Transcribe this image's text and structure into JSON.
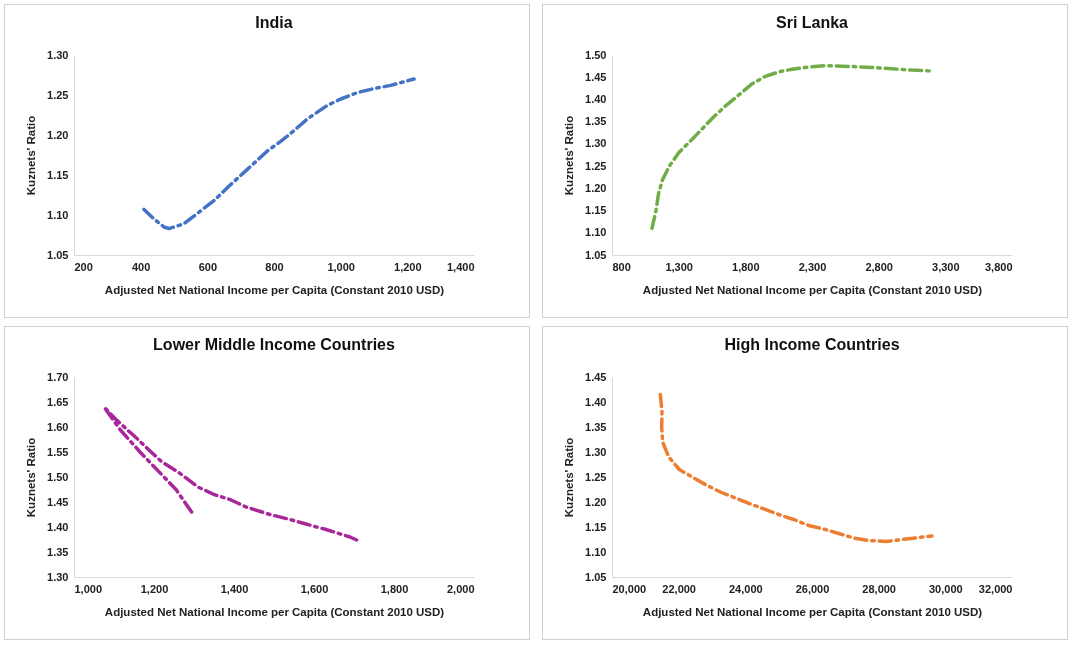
{
  "chart_data": [
    {
      "type": "line",
      "title": "India",
      "xlabel": "Adjusted Net National Income per Capita (Constant 2010 USD)",
      "ylabel": "Kuznets' Ratio",
      "line_style": "dashed",
      "grid": false,
      "xlim": [
        200,
        1400
      ],
      "xticks": [
        200,
        400,
        600,
        800,
        {
          "value": 1000,
          "label": "1,000"
        },
        {
          "value": 1200,
          "label": "1,200"
        },
        {
          "value": 1400,
          "label": "1,400"
        }
      ],
      "ylim": [
        1.05,
        1.3
      ],
      "yticks": [
        1.05,
        {
          "value": 1.1,
          "label": "1.10"
        },
        1.15,
        {
          "value": 1.2,
          "label": "1.20"
        },
        1.25,
        {
          "value": 1.3,
          "label": "1.30"
        }
      ],
      "series": [
        {
          "color": "#4472c4",
          "x": [
            410,
            440,
            470,
            485,
            530,
            570,
            620,
            670,
            720,
            780,
            820,
            850,
            900,
            960,
            1000,
            1050,
            1100,
            1150,
            1220
          ],
          "values": [
            1.107,
            1.095,
            1.085,
            1.083,
            1.089,
            1.102,
            1.118,
            1.138,
            1.157,
            1.18,
            1.192,
            1.202,
            1.22,
            1.237,
            1.245,
            1.253,
            1.258,
            1.262,
            1.27
          ]
        }
      ]
    },
    {
      "type": "line",
      "title": "Sri Lanka",
      "xlabel": "Adjusted Net National Income per Capita (Constant 2010 USD)",
      "ylabel": "Kuznets' Ratio",
      "line_style": "dashed",
      "grid": false,
      "xlim": [
        800,
        3800
      ],
      "xticks": [
        800,
        {
          "value": 1300,
          "label": "1,300"
        },
        {
          "value": 1800,
          "label": "1,800"
        },
        {
          "value": 2300,
          "label": "2,300"
        },
        {
          "value": 2800,
          "label": "2,800"
        },
        {
          "value": 3300,
          "label": "3,300"
        },
        {
          "value": 3800,
          "label": "3,800"
        }
      ],
      "ylim": [
        1.05,
        1.5
      ],
      "yticks": [
        1.05,
        {
          "value": 1.1,
          "label": "1.10"
        },
        1.15,
        {
          "value": 1.2,
          "label": "1.20"
        },
        1.25,
        {
          "value": 1.3,
          "label": "1.30"
        },
        1.35,
        {
          "value": 1.4,
          "label": "1.40"
        },
        1.45,
        {
          "value": 1.5,
          "label": "1.50"
        }
      ],
      "series": [
        {
          "color": "#70ad47",
          "x": [
            1100,
            1130,
            1150,
            1180,
            1230,
            1300,
            1400,
            1480,
            1560,
            1650,
            1750,
            1850,
            1950,
            2050,
            2150,
            2250,
            2400,
            2600,
            2750,
            2900,
            3050,
            3200
          ],
          "values": [
            1.11,
            1.15,
            1.19,
            1.22,
            1.25,
            1.28,
            1.31,
            1.335,
            1.36,
            1.385,
            1.41,
            1.435,
            1.452,
            1.462,
            1.468,
            1.472,
            1.476,
            1.474,
            1.472,
            1.469,
            1.466,
            1.464
          ]
        }
      ]
    },
    {
      "type": "line",
      "title": "Lower Middle Income Countries",
      "xlabel": "Adjusted Net National Income per Capita (Constant 2010 USD)",
      "ylabel": "Kuznets' Ratio",
      "line_style": "dashed",
      "grid": false,
      "xlim": [
        1000,
        2000
      ],
      "xticks": [
        {
          "value": 1000,
          "label": "1,000"
        },
        {
          "value": 1200,
          "label": "1,200"
        },
        {
          "value": 1400,
          "label": "1,400"
        },
        {
          "value": 1600,
          "label": "1,600"
        },
        {
          "value": 1800,
          "label": "1,800"
        },
        {
          "value": 2000,
          "label": "2,000"
        }
      ],
      "ylim": [
        1.3,
        1.7
      ],
      "yticks": [
        {
          "value": 1.3,
          "label": "1.30"
        },
        1.35,
        {
          "value": 1.4,
          "label": "1.40"
        },
        1.45,
        {
          "value": 1.5,
          "label": "1.50"
        },
        1.55,
        {
          "value": 1.6,
          "label": "1.60"
        },
        1.65,
        {
          "value": 1.7,
          "label": "1.70"
        }
      ],
      "series": [
        {
          "color": "#a8289a",
          "x": [
            1294,
            1255,
            1225,
            1195,
            1165,
            1115,
            1075,
            1105,
            1160,
            1190,
            1220,
            1260,
            1310,
            1350,
            1390,
            1430,
            1490,
            1540,
            1575,
            1630,
            1690,
            1712
          ],
          "values": [
            1.43,
            1.475,
            1.5,
            1.525,
            1.55,
            1.595,
            1.64,
            1.615,
            1.575,
            1.552,
            1.53,
            1.51,
            1.48,
            1.465,
            1.455,
            1.44,
            1.425,
            1.415,
            1.407,
            1.395,
            1.38,
            1.372
          ]
        }
      ]
    },
    {
      "type": "line",
      "title": "High Income Countries",
      "xlabel": "Adjusted Net National Income per Capita (Constant 2010 USD)",
      "ylabel": "Kuznets' Ratio",
      "line_style": "dashed",
      "grid": false,
      "xlim": [
        20000,
        32000
      ],
      "xticks": [
        {
          "value": 20000,
          "label": "20,000"
        },
        {
          "value": 22000,
          "label": "22,000"
        },
        {
          "value": 24000,
          "label": "24,000"
        },
        {
          "value": 26000,
          "label": "26,000"
        },
        {
          "value": 28000,
          "label": "28,000"
        },
        {
          "value": 30000,
          "label": "30,000"
        },
        {
          "value": 32000,
          "label": "32,000"
        }
      ],
      "ylim": [
        1.05,
        1.45
      ],
      "yticks": [
        1.05,
        {
          "value": 1.1,
          "label": "1.10"
        },
        1.15,
        {
          "value": 1.2,
          "label": "1.20"
        },
        1.25,
        {
          "value": 1.3,
          "label": "1.30"
        },
        1.35,
        {
          "value": 1.4,
          "label": "1.40"
        },
        1.45
      ],
      "series": [
        {
          "color": "#ed7d31",
          "x": [
            21450,
            21500,
            21490,
            21520,
            21700,
            22020,
            22800,
            23250,
            23700,
            24200,
            25000,
            25450,
            25900,
            26400,
            27250,
            27700,
            28230,
            28700,
            29600
          ],
          "values": [
            1.415,
            1.38,
            1.35,
            1.32,
            1.29,
            1.265,
            1.235,
            1.22,
            1.208,
            1.195,
            1.175,
            1.165,
            1.153,
            1.145,
            1.128,
            1.123,
            1.121,
            1.125,
            1.132
          ]
        }
      ]
    }
  ]
}
